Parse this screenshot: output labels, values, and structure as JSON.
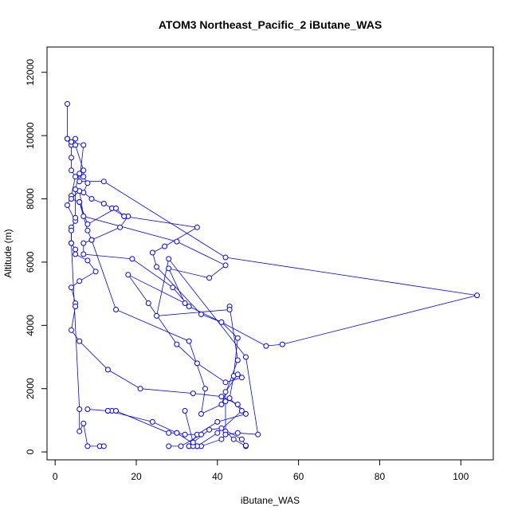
{
  "chart_data": {
    "type": "line",
    "title": "ATOM3 Northeast_Pacific_2 iButane_WAS",
    "xlabel": "iButane_WAS",
    "ylabel": "Altitude (m)",
    "xlim": [
      -2,
      108
    ],
    "ylim": [
      -250,
      12800
    ],
    "xticks": [
      0,
      20,
      40,
      60,
      80,
      100
    ],
    "yticks": [
      0,
      2000,
      4000,
      6000,
      8000,
      10000,
      12000
    ],
    "xtick_labels": [
      "0",
      "20",
      "40",
      "60",
      "80",
      "100"
    ],
    "ytick_labels": [
      "0",
      "2000",
      "4000",
      "6000",
      "8000",
      "10000",
      "12000"
    ],
    "grid": false,
    "series_color": "#0000ff",
    "marker": "open-circle",
    "series": [
      {
        "points": [
          [
            3,
            11000
          ],
          [
            3,
            9900
          ],
          [
            4,
            9700
          ],
          [
            4,
            9300
          ],
          [
            4,
            8900
          ],
          [
            5,
            8700
          ],
          [
            4,
            8100
          ],
          [
            3,
            7800
          ],
          [
            5,
            7300
          ],
          [
            4,
            7100
          ],
          [
            4,
            6600
          ],
          [
            5,
            6400
          ],
          [
            5,
            6250
          ],
          [
            8,
            6050
          ],
          [
            10,
            5700
          ],
          [
            6,
            5400
          ],
          [
            4,
            5200
          ],
          [
            5,
            4700
          ],
          [
            5,
            4600
          ],
          [
            4,
            3850
          ],
          [
            6,
            3500
          ],
          [
            13,
            2600
          ],
          [
            21,
            2000
          ],
          [
            34,
            1850
          ],
          [
            41,
            1750
          ],
          [
            45,
            1500
          ],
          [
            47,
            1200
          ],
          [
            40,
            950
          ],
          [
            35,
            550
          ],
          [
            33,
            180
          ]
        ]
      },
      {
        "points": [
          [
            5,
            9900
          ],
          [
            5,
            9700
          ],
          [
            7,
            8900
          ],
          [
            7,
            8700
          ],
          [
            8,
            8500
          ],
          [
            7,
            8200
          ],
          [
            9,
            8000
          ],
          [
            12,
            7850
          ],
          [
            14,
            7700
          ],
          [
            17,
            7450
          ],
          [
            18,
            7450
          ],
          [
            16,
            7100
          ],
          [
            9,
            6700
          ],
          [
            7,
            6600
          ],
          [
            7,
            6250
          ],
          [
            19,
            6100
          ],
          [
            29,
            5200
          ],
          [
            33,
            4600
          ],
          [
            41,
            4100
          ],
          [
            45,
            3600
          ],
          [
            44,
            2400
          ],
          [
            43,
            1700
          ],
          [
            46,
            1300
          ],
          [
            40,
            600
          ],
          [
            35,
            180
          ]
        ]
      },
      {
        "points": [
          [
            3,
            9900
          ],
          [
            4,
            9800
          ],
          [
            7,
            9700
          ],
          [
            6,
            8550
          ],
          [
            12,
            8550
          ],
          [
            42,
            6150
          ],
          [
            104,
            4950
          ],
          [
            56,
            3400
          ],
          [
            52,
            3350
          ],
          [
            41,
            4100
          ],
          [
            36,
            4350
          ],
          [
            25,
            5850
          ],
          [
            24,
            6300
          ],
          [
            27,
            6500
          ],
          [
            35,
            7100
          ],
          [
            17,
            7450
          ],
          [
            15,
            7700
          ],
          [
            8,
            7200
          ],
          [
            6,
            7900
          ],
          [
            4,
            8000
          ],
          [
            6,
            8250
          ],
          [
            7,
            7450
          ],
          [
            30,
            6650
          ],
          [
            42,
            5900
          ],
          [
            38,
            5500
          ],
          [
            28,
            5800
          ],
          [
            32,
            4700
          ],
          [
            18,
            5600
          ],
          [
            23,
            4700
          ],
          [
            30,
            3400
          ],
          [
            35,
            2800
          ],
          [
            42,
            2200
          ],
          [
            46,
            2350
          ],
          [
            45,
            2450
          ],
          [
            42,
            1900
          ],
          [
            42,
            1600
          ],
          [
            42,
            650
          ],
          [
            44,
            400
          ],
          [
            47,
            180
          ]
        ]
      },
      {
        "points": [
          [
            6,
            7900
          ],
          [
            8,
            7000
          ],
          [
            9,
            6700
          ],
          [
            15,
            4500
          ],
          [
            33,
            3500
          ],
          [
            37,
            2000
          ],
          [
            36,
            1200
          ],
          [
            41,
            1500
          ],
          [
            45,
            2900
          ],
          [
            43,
            4600
          ],
          [
            43,
            4500
          ],
          [
            25,
            4300
          ],
          [
            28,
            6100
          ],
          [
            47,
            3000
          ],
          [
            50,
            550
          ],
          [
            45,
            600
          ],
          [
            42,
            550
          ],
          [
            41,
            400
          ],
          [
            36,
            180
          ]
        ]
      },
      {
        "points": [
          [
            6,
            8800
          ],
          [
            5,
            8300
          ],
          [
            5,
            7400
          ],
          [
            4,
            7000
          ],
          [
            4,
            6600
          ],
          [
            6,
            1350
          ],
          [
            6,
            650
          ],
          [
            7,
            900
          ],
          [
            8,
            180
          ],
          [
            11,
            180
          ],
          [
            12,
            180
          ]
        ]
      },
      {
        "points": [
          [
            13,
            1300
          ],
          [
            14,
            1300
          ],
          [
            15,
            1300
          ],
          [
            28,
            600
          ],
          [
            30,
            600
          ],
          [
            35,
            180
          ],
          [
            33,
            180
          ],
          [
            34,
            180
          ]
        ]
      },
      {
        "points": [
          [
            8,
            1350
          ],
          [
            13,
            1300
          ],
          [
            24,
            950
          ],
          [
            30,
            600
          ],
          [
            32,
            550
          ],
          [
            36,
            550
          ],
          [
            31,
            180
          ],
          [
            28,
            180
          ]
        ]
      },
      {
        "points": [
          [
            32,
            1300
          ],
          [
            34,
            300
          ],
          [
            38,
            700
          ],
          [
            41,
            750
          ],
          [
            46,
            400
          ],
          [
            47,
            200
          ]
        ]
      }
    ]
  }
}
